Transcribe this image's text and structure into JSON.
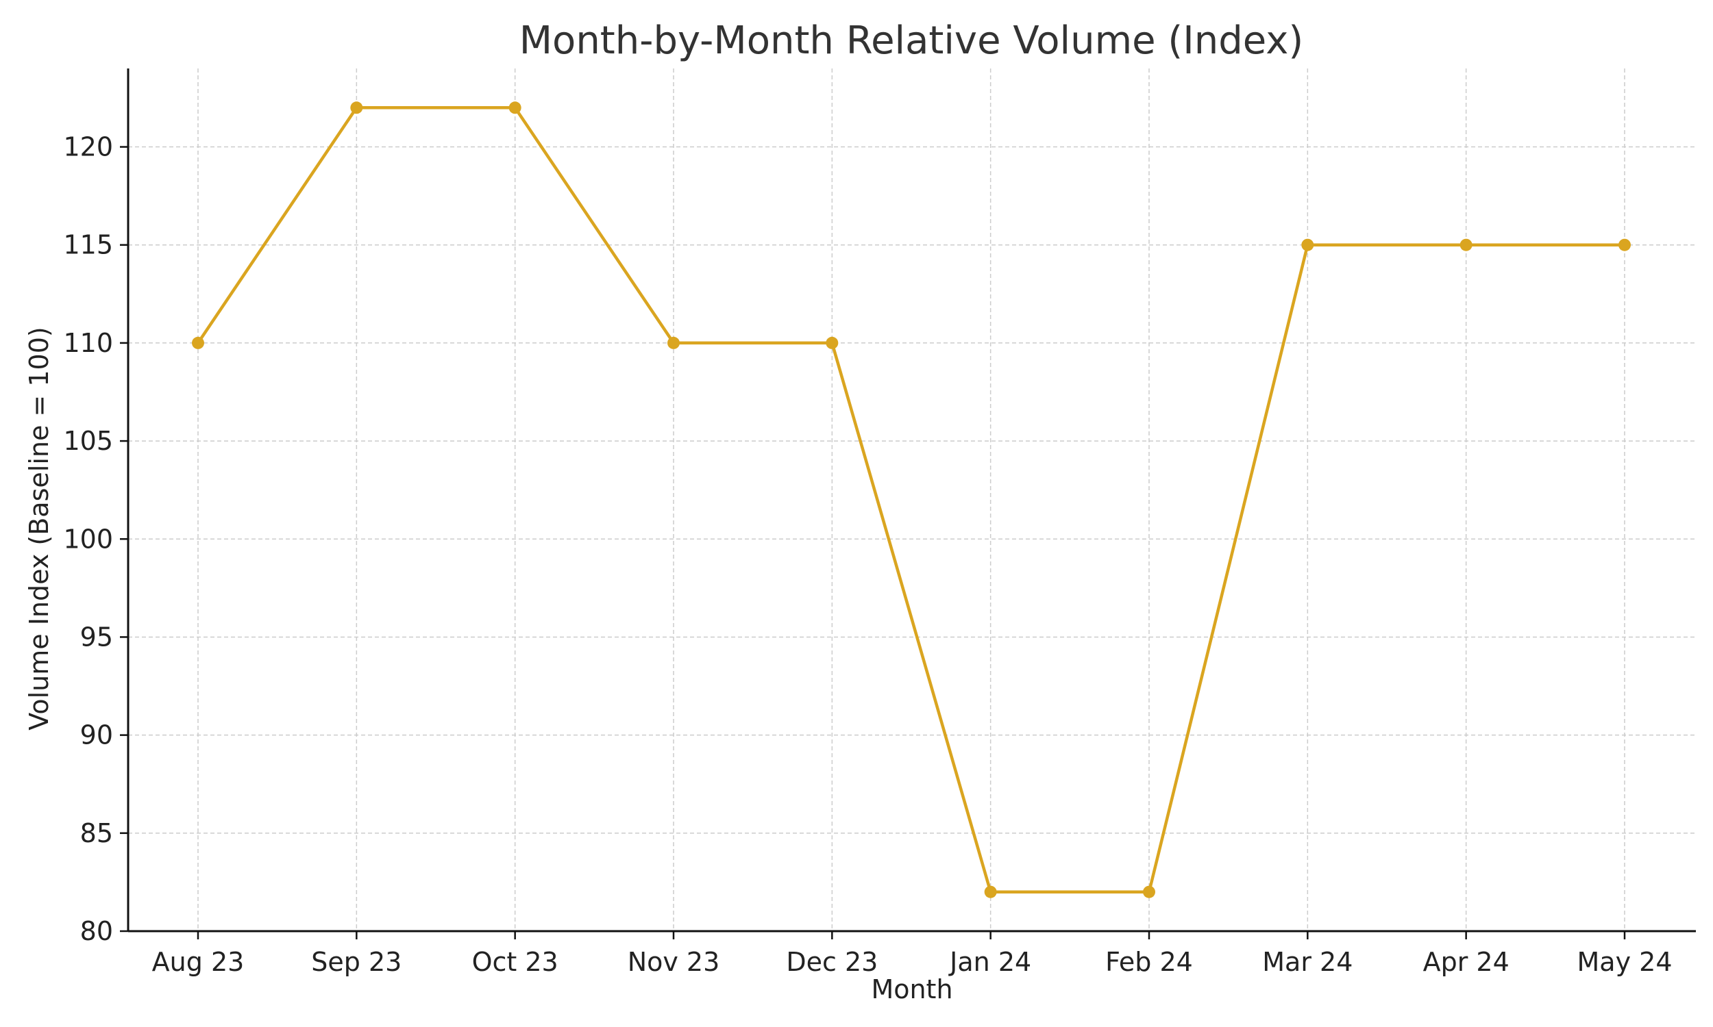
{
  "chart_data": {
    "type": "line",
    "title": "Month-by-Month Relative Volume (Index)",
    "xlabel": "Month",
    "ylabel": "Volume Index (Baseline = 100)",
    "categories": [
      "Aug 23",
      "Sep 23",
      "Oct 23",
      "Nov 23",
      "Dec 23",
      "Jan 24",
      "Feb 24",
      "Mar 24",
      "Apr 24",
      "May 24"
    ],
    "series": [
      {
        "values": [
          110,
          122,
          122,
          110,
          110,
          82,
          82,
          115,
          115,
          115
        ],
        "color": "#DAA520",
        "marker": "circle"
      }
    ],
    "ylim": [
      80,
      124
    ],
    "yticks": [
      80,
      85,
      90,
      95,
      100,
      105,
      110,
      115,
      120
    ],
    "grid": true,
    "legend": "none"
  }
}
